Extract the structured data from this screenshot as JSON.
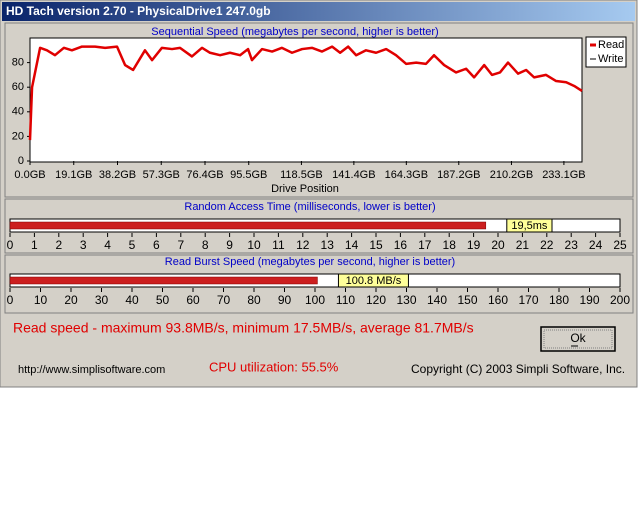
{
  "window": {
    "title": "HD Tach version 2.70 - PhysicalDrive1 247.0gb"
  },
  "chart_data": [
    {
      "type": "line",
      "title": "Sequential Speed (megabytes per second, higher is better)",
      "x_label": "Drive Position",
      "xlim": [
        0,
        241
      ],
      "ylim": [
        0,
        100
      ],
      "xticks": [
        {
          "value": 0,
          "label": "0.0GB"
        },
        {
          "value": 19.1,
          "label": "19.1GB"
        },
        {
          "value": 38.2,
          "label": "38.2GB"
        },
        {
          "value": 57.3,
          "label": "57.3GB"
        },
        {
          "value": 76.4,
          "label": "76.4GB"
        },
        {
          "value": 95.5,
          "label": "95.5GB"
        },
        {
          "value": 118.5,
          "label": "118.5GB"
        },
        {
          "value": 141.4,
          "label": "141.4GB"
        },
        {
          "value": 164.3,
          "label": "164.3GB"
        },
        {
          "value": 187.2,
          "label": "187.2GB"
        },
        {
          "value": 210.2,
          "label": "210.2GB"
        },
        {
          "value": 233.1,
          "label": "233.1GB"
        }
      ],
      "yticks": [
        0,
        20,
        40,
        60,
        80
      ],
      "grid": false,
      "legend": "top-right",
      "x": [
        0,
        0.9,
        4.4,
        7.4,
        10.9,
        14.8,
        18.3,
        22.7,
        28.4,
        32.8,
        38.0,
        41.5,
        45.0,
        50.2,
        53.3,
        57.6,
        62.0,
        65.5,
        70.7,
        75.1,
        78.6,
        83.0,
        87.3,
        91.7,
        95.2,
        96.9,
        101.3,
        105.7,
        110.0,
        114.4,
        118.8,
        123.1,
        127.5,
        131.9,
        135.4,
        138.9,
        142.4,
        146.7,
        151.1,
        155.5,
        159.8,
        164.2,
        168.6,
        172.9,
        176.4,
        180.8,
        186.0,
        190.4,
        193.9,
        198.3,
        201.7,
        205.2,
        208.7,
        213.1,
        216.6,
        220.1,
        225.3,
        229.7,
        234.1,
        237.6,
        241.0
      ],
      "series": [
        {
          "name": "Read",
          "color": "#e00000",
          "values": [
            17,
            60,
            92,
            90,
            86,
            92,
            90,
            93,
            93,
            92,
            93,
            78,
            74,
            90,
            82,
            92,
            91,
            92,
            85,
            92,
            88,
            86,
            88,
            86,
            91,
            82,
            91,
            89,
            92,
            88,
            91,
            92,
            89,
            93,
            88,
            93,
            86,
            90,
            88,
            91,
            86,
            79,
            80,
            79,
            86,
            78,
            72,
            75,
            68,
            78,
            70,
            72,
            80,
            71,
            74,
            68,
            70,
            65,
            64,
            61,
            57
          ]
        },
        {
          "name": "Write",
          "color": "#000000"
        }
      ]
    },
    {
      "type": "bar",
      "orientation": "horizontal",
      "title": "Random Access Time (milliseconds, lower is better)",
      "xlim": [
        0,
        25
      ],
      "xticks": [
        0,
        1,
        2,
        3,
        4,
        5,
        6,
        7,
        8,
        9,
        10,
        11,
        12,
        13,
        14,
        15,
        16,
        17,
        18,
        19,
        20,
        21,
        22,
        23,
        24,
        25
      ],
      "values": [
        19.5
      ],
      "value_labels": [
        "19,5ms"
      ],
      "color": "#cc1f1f"
    },
    {
      "type": "bar",
      "orientation": "horizontal",
      "title": "Read Burst Speed (megabytes per second, higher is better)",
      "xlim": [
        0,
        200
      ],
      "xticks": [
        0,
        10,
        20,
        30,
        40,
        50,
        60,
        70,
        80,
        90,
        100,
        110,
        120,
        130,
        140,
        150,
        160,
        170,
        180,
        190,
        200
      ],
      "values": [
        100.8
      ],
      "value_labels": [
        "100.8 MB/s"
      ],
      "color": "#cc1f1f"
    }
  ],
  "summary": "Read speed - maximum 93.8MB/s, minimum 17.5MB/s, average 81.7MB/s",
  "button": {
    "label": "Ok"
  },
  "footer": {
    "url": "http://www.simplisoftware.com",
    "cpu": "CPU utilization: 55.5%",
    "copyright": "Copyright (C) 2003 Simpli Software, Inc."
  }
}
